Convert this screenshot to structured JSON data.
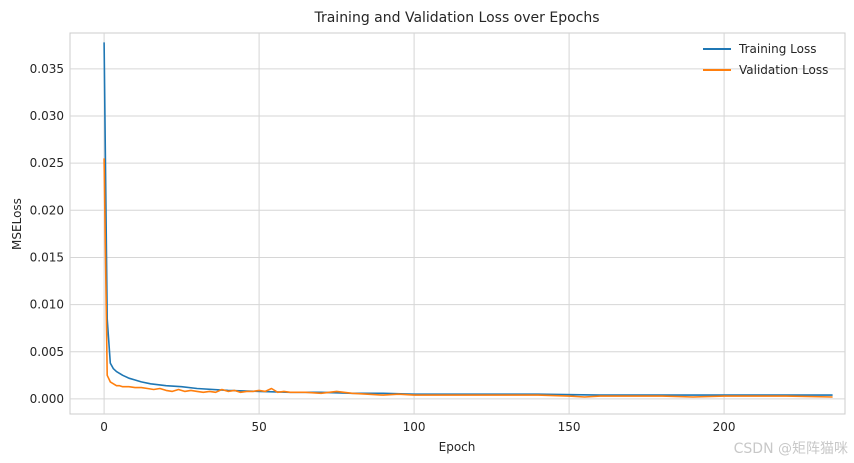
{
  "chart_data": {
    "type": "line",
    "title": "Training and Validation Loss over Epochs",
    "xlabel": "Epoch",
    "ylabel": "MSELoss",
    "xlim": [
      -11,
      239
    ],
    "ylim": [
      -0.0016,
      0.0388
    ],
    "x_ticks": [
      0,
      50,
      100,
      150,
      200
    ],
    "y_ticks": [
      0.0,
      0.005,
      0.01,
      0.015,
      0.02,
      0.025,
      0.03,
      0.035
    ],
    "y_tick_labels": [
      "0.000",
      "0.005",
      "0.010",
      "0.015",
      "0.020",
      "0.025",
      "0.030",
      "0.035"
    ],
    "grid": true,
    "legend_position": "top-right",
    "series": [
      {
        "name": "Training Loss",
        "color": "#1f77b4",
        "x": [
          0,
          1,
          2,
          3,
          4,
          5,
          6,
          8,
          10,
          12,
          15,
          20,
          25,
          30,
          40,
          50,
          60,
          70,
          80,
          90,
          100,
          120,
          140,
          160,
          180,
          200,
          220,
          235
        ],
        "y": [
          0.0378,
          0.0085,
          0.0038,
          0.0032,
          0.0029,
          0.0027,
          0.0025,
          0.0022,
          0.002,
          0.0018,
          0.0016,
          0.0014,
          0.0013,
          0.0011,
          0.0009,
          0.0008,
          0.0007,
          0.0007,
          0.0006,
          0.0006,
          0.0005,
          0.0005,
          0.0005,
          0.0004,
          0.0004,
          0.0004,
          0.0004,
          0.0004
        ]
      },
      {
        "name": "Validation Loss",
        "color": "#ff7f0e",
        "x": [
          0,
          1,
          2,
          3,
          4,
          5,
          6,
          8,
          10,
          12,
          14,
          16,
          18,
          20,
          22,
          24,
          26,
          28,
          30,
          32,
          34,
          36,
          38,
          40,
          42,
          44,
          46,
          48,
          50,
          52,
          54,
          56,
          58,
          60,
          65,
          70,
          75,
          80,
          85,
          90,
          95,
          100,
          110,
          120,
          130,
          140,
          150,
          155,
          160,
          170,
          180,
          190,
          200,
          210,
          220,
          235
        ],
        "y": [
          0.0255,
          0.0025,
          0.0018,
          0.0016,
          0.0014,
          0.0014,
          0.0013,
          0.0013,
          0.0012,
          0.0012,
          0.0011,
          0.001,
          0.0011,
          0.0009,
          0.0008,
          0.001,
          0.0008,
          0.0009,
          0.0008,
          0.0007,
          0.0008,
          0.0007,
          0.001,
          0.0008,
          0.0009,
          0.0007,
          0.0008,
          0.0008,
          0.0009,
          0.0008,
          0.0011,
          0.0007,
          0.0008,
          0.0007,
          0.0007,
          0.0006,
          0.0008,
          0.0006,
          0.0005,
          0.0004,
          0.0005,
          0.0004,
          0.0004,
          0.0004,
          0.0004,
          0.0004,
          0.0003,
          0.0002,
          0.0003,
          0.0003,
          0.0003,
          0.0002,
          0.0003,
          0.0003,
          0.0003,
          0.0002
        ]
      }
    ]
  },
  "watermark": "CSDN @矩阵猫咪"
}
